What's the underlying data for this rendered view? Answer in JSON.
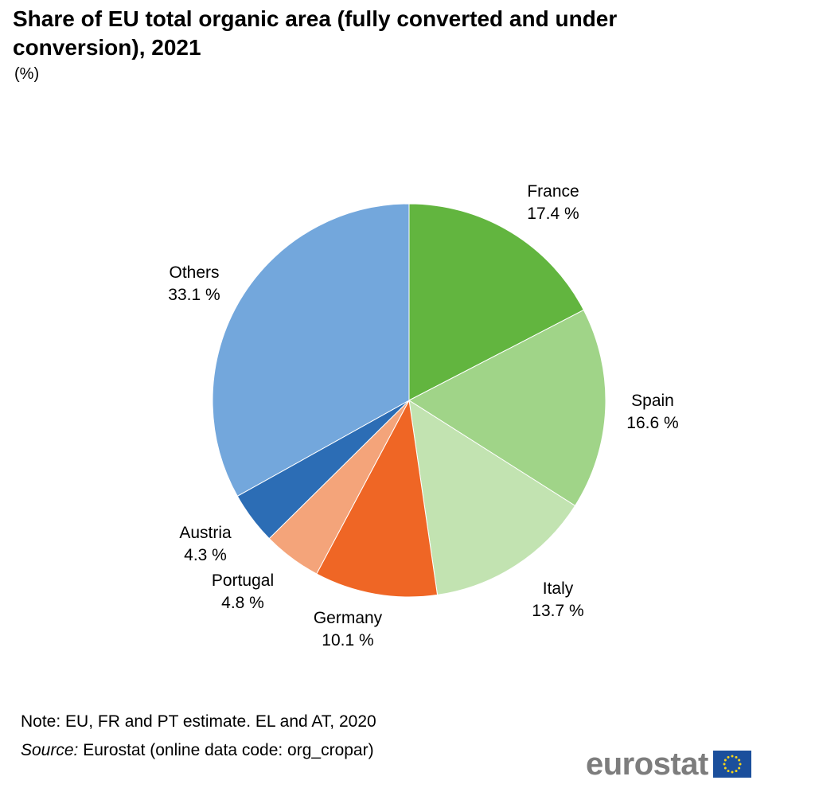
{
  "header": {
    "title": "Share of EU total organic area (fully converted and under conversion), 2021",
    "subtitle": "(%)"
  },
  "footer": {
    "note": "Note: EU, FR and PT estimate. EL and AT, 2020",
    "source_label": "Source:",
    "source_text": " Eurostat (online data code: org_cropar)",
    "logo_text": "eurostat"
  },
  "chart_data": {
    "type": "pie",
    "title": "Share of EU total organic area (fully converted and under conversion), 2021",
    "unit": "(%)",
    "start_angle": "12 o'clock",
    "direction": "clockwise",
    "categories": [
      "France",
      "Spain",
      "Italy",
      "Germany",
      "Portugal",
      "Austria",
      "Others"
    ],
    "values": [
      17.4,
      16.6,
      13.7,
      10.1,
      4.8,
      4.3,
      33.1
    ],
    "value_labels": [
      "17.4 %",
      "16.6 %",
      "13.7 %",
      "10.1 %",
      "4.8 %",
      "4.3 %",
      "33.1 %"
    ],
    "colors": [
      "#62b53f",
      "#a0d488",
      "#c2e3b1",
      "#ef6625",
      "#f4a47a",
      "#2c6db5",
      "#73a7dc"
    ]
  }
}
